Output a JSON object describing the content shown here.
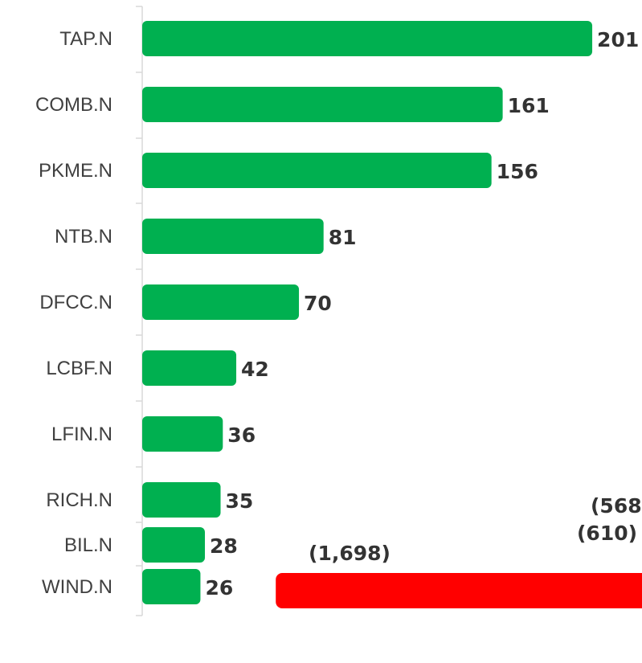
{
  "chart_data": [
    {
      "type": "barh",
      "categories": [
        "TAP.N",
        "COMB.N",
        "PKME.N",
        "NTB.N",
        "DFCC.N",
        "LCBF.N",
        "LFIN.N",
        "RICH.N",
        "BIL.N",
        "WIND.N"
      ],
      "values": [
        201,
        161,
        156,
        81,
        70,
        42,
        36,
        35,
        28,
        26
      ],
      "color": "#00b050",
      "xlim": [
        0,
        220
      ]
    },
    {
      "type": "barh",
      "values": [
        -568,
        -610,
        -1698
      ],
      "value_labels": [
        "(568",
        "(610)",
        "(1,698)"
      ],
      "color": "#ff0000",
      "xlim": [
        -2300,
        0
      ]
    }
  ]
}
